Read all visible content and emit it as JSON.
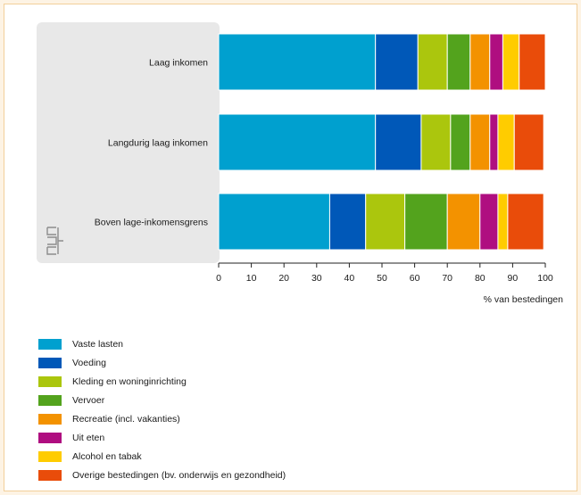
{
  "chart_data": {
    "type": "bar",
    "orientation": "horizontal",
    "stacked": true,
    "categories": [
      "Laag inkomen",
      "Langdurig laag inkomen",
      "Boven lage-inkomensgrens"
    ],
    "series": [
      {
        "name": "Vaste lasten",
        "color": "#00a0cf",
        "values": [
          48,
          48,
          34
        ]
      },
      {
        "name": "Voeding",
        "color": "#0058b8",
        "values": [
          13,
          14,
          11
        ]
      },
      {
        "name": "Kleding en woninginrichting",
        "color": "#abc60d",
        "values": [
          9,
          9,
          12
        ]
      },
      {
        "name": "Vervoer",
        "color": "#53a31d",
        "values": [
          7,
          6,
          13
        ]
      },
      {
        "name": "Recreatie (incl. vakanties)",
        "color": "#f39200",
        "values": [
          6,
          6,
          10
        ]
      },
      {
        "name": "Uit eten",
        "color": "#af0e80",
        "values": [
          4,
          2.5,
          5.5
        ]
      },
      {
        "name": "Alcohol en tabak",
        "color": "#ffcc00",
        "values": [
          5,
          5,
          3
        ]
      },
      {
        "name": "Overige bestedingen (bv. onderwijs en gezondheid)",
        "color": "#e94c0a",
        "values": [
          8,
          9,
          11
        ]
      }
    ],
    "xlim": [
      0,
      100
    ],
    "xticks": [
      "0",
      "10",
      "20",
      "30",
      "40",
      "50",
      "60",
      "70",
      "80",
      "90",
      "100"
    ],
    "xlabel": "% van bestedingen",
    "legend_position": "bottom-left",
    "grid": false
  },
  "colors": {
    "page_background": "#fdf3e4",
    "frame_border": "#f2cf9a",
    "label_panel": "#e8e8e8",
    "axis": "#222222"
  },
  "icons": {
    "logo": "cbs-logo-icon"
  }
}
